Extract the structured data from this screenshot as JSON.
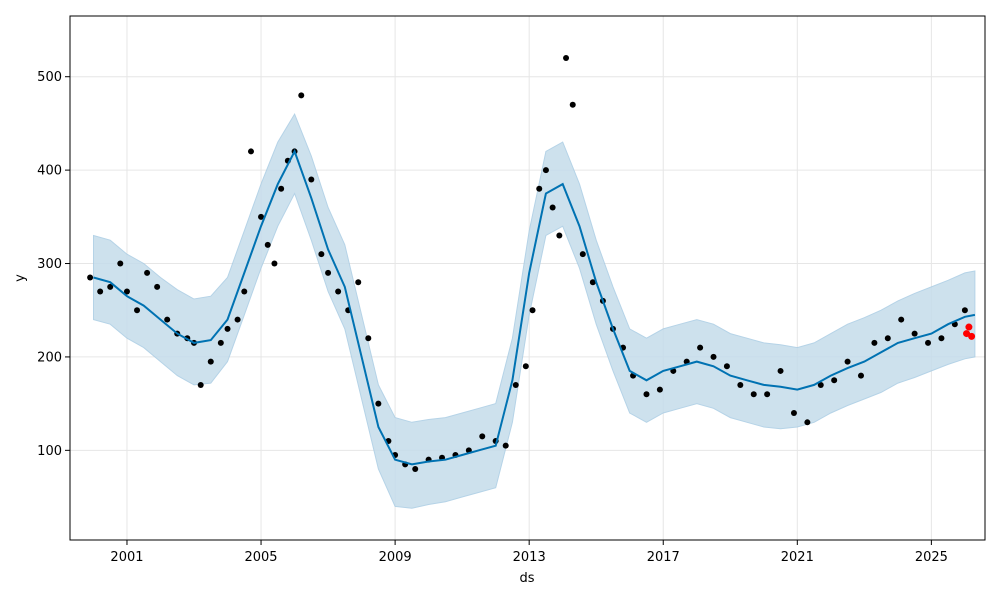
{
  "chart_data": {
    "type": "line",
    "title": "",
    "xlabel": "ds",
    "ylabel": "y",
    "xlim": [
      1999.3,
      2026.6
    ],
    "ylim": [
      4,
      565
    ],
    "grid": true,
    "legend": "none",
    "x_ticks": [
      2001,
      2005,
      2009,
      2013,
      2017,
      2021,
      2025
    ],
    "y_ticks": [
      100,
      200,
      300,
      400,
      500
    ],
    "colors": {
      "forecast_line": "#0072B2",
      "uncertainty_band": "#c5dceb",
      "band_edge": "#a9cce3",
      "observed_points": "#000000",
      "highlight_points": "#ff0000",
      "grid": "#e6e6e6"
    },
    "series": [
      {
        "role": "forecast",
        "x": [
          2000.0,
          2000.5,
          2001.0,
          2001.5,
          2002.0,
          2002.5,
          2003.0,
          2003.5,
          2004.0,
          2004.5,
          2005.0,
          2005.5,
          2006.0,
          2006.5,
          2007.0,
          2007.5,
          2008.0,
          2008.5,
          2009.0,
          2009.5,
          2010.0,
          2010.5,
          2011.0,
          2011.5,
          2012.0,
          2012.5,
          2013.0,
          2013.5,
          2014.0,
          2014.5,
          2015.0,
          2015.5,
          2016.0,
          2016.5,
          2017.0,
          2017.5,
          2018.0,
          2018.5,
          2019.0,
          2019.5,
          2020.0,
          2020.5,
          2021.0,
          2021.5,
          2022.0,
          2022.5,
          2023.0,
          2023.5,
          2024.0,
          2024.5,
          2025.0,
          2025.5,
          2026.0,
          2026.3
        ],
        "values": [
          285,
          280,
          265,
          255,
          240,
          225,
          215,
          218,
          240,
          290,
          340,
          385,
          420,
          370,
          315,
          275,
          200,
          125,
          90,
          85,
          88,
          90,
          95,
          100,
          105,
          175,
          290,
          375,
          385,
          340,
          280,
          230,
          185,
          175,
          185,
          190,
          195,
          190,
          180,
          175,
          170,
          168,
          165,
          170,
          180,
          188,
          195,
          205,
          215,
          220,
          225,
          235,
          243,
          245
        ]
      },
      {
        "role": "uncertainty_upper",
        "x": [
          2000.0,
          2000.5,
          2001.0,
          2001.5,
          2002.0,
          2002.5,
          2003.0,
          2003.5,
          2004.0,
          2004.5,
          2005.0,
          2005.5,
          2006.0,
          2006.5,
          2007.0,
          2007.5,
          2008.0,
          2008.5,
          2009.0,
          2009.5,
          2010.0,
          2010.5,
          2011.0,
          2011.5,
          2012.0,
          2012.5,
          2013.0,
          2013.5,
          2014.0,
          2014.5,
          2015.0,
          2015.5,
          2016.0,
          2016.5,
          2017.0,
          2017.5,
          2018.0,
          2018.5,
          2019.0,
          2019.5,
          2020.0,
          2020.5,
          2021.0,
          2021.5,
          2022.0,
          2022.5,
          2023.0,
          2023.5,
          2024.0,
          2024.5,
          2025.0,
          2025.5,
          2026.0,
          2026.3
        ],
        "values": [
          330,
          325,
          310,
          300,
          285,
          272,
          262,
          265,
          285,
          335,
          385,
          430,
          460,
          415,
          360,
          320,
          245,
          170,
          135,
          130,
          133,
          135,
          140,
          145,
          150,
          220,
          335,
          420,
          430,
          385,
          325,
          275,
          230,
          220,
          230,
          235,
          240,
          235,
          225,
          220,
          215,
          213,
          210,
          215,
          225,
          235,
          242,
          250,
          260,
          268,
          275,
          282,
          290,
          292
        ]
      },
      {
        "role": "uncertainty_lower",
        "x": [
          2000.0,
          2000.5,
          2001.0,
          2001.5,
          2002.0,
          2002.5,
          2003.0,
          2003.5,
          2004.0,
          2004.5,
          2005.0,
          2005.5,
          2006.0,
          2006.5,
          2007.0,
          2007.5,
          2008.0,
          2008.5,
          2009.0,
          2009.5,
          2010.0,
          2010.5,
          2011.0,
          2011.5,
          2012.0,
          2012.5,
          2013.0,
          2013.5,
          2014.0,
          2014.5,
          2015.0,
          2015.5,
          2016.0,
          2016.5,
          2017.0,
          2017.5,
          2018.0,
          2018.5,
          2019.0,
          2019.5,
          2020.0,
          2020.5,
          2021.0,
          2021.5,
          2022.0,
          2022.5,
          2023.0,
          2023.5,
          2024.0,
          2024.5,
          2025.0,
          2025.5,
          2026.0,
          2026.3
        ],
        "values": [
          240,
          235,
          220,
          210,
          195,
          180,
          170,
          172,
          195,
          245,
          295,
          340,
          375,
          325,
          270,
          230,
          155,
          80,
          40,
          38,
          42,
          45,
          50,
          55,
          60,
          130,
          245,
          330,
          340,
          295,
          235,
          185,
          140,
          130,
          140,
          145,
          150,
          145,
          135,
          130,
          125,
          123,
          125,
          130,
          140,
          148,
          155,
          162,
          172,
          178,
          185,
          192,
          198,
          200
        ]
      },
      {
        "role": "observed",
        "x": [
          1999.9,
          2000.2,
          2000.5,
          2000.8,
          2001.0,
          2001.3,
          2001.6,
          2001.9,
          2002.2,
          2002.5,
          2002.8,
          2003.0,
          2003.2,
          2003.5,
          2003.8,
          2004.0,
          2004.3,
          2004.5,
          2004.7,
          2005.0,
          2005.2,
          2005.4,
          2005.6,
          2005.8,
          2006.0,
          2006.2,
          2006.5,
          2006.8,
          2007.0,
          2007.3,
          2007.6,
          2007.9,
          2008.2,
          2008.5,
          2008.8,
          2009.0,
          2009.3,
          2009.6,
          2010.0,
          2010.4,
          2010.8,
          2011.2,
          2011.6,
          2012.0,
          2012.3,
          2012.6,
          2012.9,
          2013.1,
          2013.3,
          2013.5,
          2013.7,
          2013.9,
          2014.1,
          2014.3,
          2014.6,
          2014.9,
          2015.2,
          2015.5,
          2015.8,
          2016.1,
          2016.5,
          2016.9,
          2017.3,
          2017.7,
          2018.1,
          2018.5,
          2018.9,
          2019.3,
          2019.7,
          2020.1,
          2020.5,
          2020.9,
          2021.3,
          2021.7,
          2022.1,
          2022.5,
          2022.9,
          2023.3,
          2023.7,
          2024.1,
          2024.5,
          2024.9,
          2025.3,
          2025.7,
          2026.0
        ],
        "values": [
          285,
          270,
          275,
          300,
          270,
          250,
          290,
          275,
          240,
          225,
          220,
          215,
          170,
          195,
          215,
          230,
          240,
          270,
          420,
          350,
          320,
          300,
          380,
          410,
          420,
          480,
          390,
          310,
          290,
          270,
          250,
          280,
          220,
          150,
          110,
          95,
          85,
          80,
          90,
          92,
          95,
          100,
          115,
          110,
          105,
          170,
          190,
          250,
          380,
          400,
          360,
          330,
          520,
          470,
          310,
          280,
          260,
          230,
          210,
          180,
          160,
          165,
          185,
          195,
          210,
          200,
          190,
          170,
          160,
          160,
          185,
          140,
          130,
          170,
          175,
          195,
          180,
          215,
          220,
          240,
          225,
          215,
          220,
          235,
          250
        ]
      },
      {
        "role": "highlight",
        "x": [
          2026.05,
          2026.12,
          2026.2
        ],
        "values": [
          225,
          232,
          222
        ]
      }
    ]
  }
}
